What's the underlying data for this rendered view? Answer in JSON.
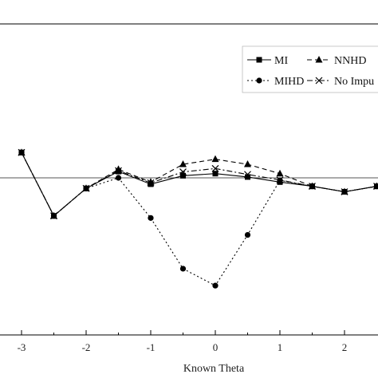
{
  "chart_data": {
    "type": "line",
    "title": "",
    "xlabel": "Known Theta",
    "ylabel": "",
    "xlim": [
      -3.3,
      2.5
    ],
    "ylim": [
      -0.42,
      0.3
    ],
    "x_ticks": [
      -3,
      -2,
      -1,
      0,
      1,
      2
    ],
    "x_tick_labels": [
      "-3",
      "-2",
      "-1",
      "0",
      "1",
      "2"
    ],
    "reference_line": 0,
    "grid": false,
    "legend_position": "top-right",
    "x": [
      -3,
      -2.5,
      -2,
      -1.5,
      -1,
      -0.5,
      0,
      0.5,
      1,
      1.5,
      2,
      2.5
    ],
    "series": [
      {
        "name": "MI",
        "marker": "square",
        "dash": "solid",
        "values": [
          0.06,
          -0.09,
          -0.025,
          0.015,
          -0.015,
          0.005,
          0.01,
          0.002,
          -0.01,
          -0.02,
          -0.033,
          -0.02
        ]
      },
      {
        "name": "NNHD",
        "marker": "triangle",
        "dash": "dashed",
        "values": [
          0.06,
          -0.09,
          -0.025,
          0.02,
          -0.01,
          0.032,
          0.044,
          0.032,
          0.01,
          -0.02,
          -0.033,
          -0.02
        ]
      },
      {
        "name": "MIHD",
        "marker": "circle",
        "dash": "dotted",
        "values": [
          0.06,
          -0.09,
          -0.025,
          0.0,
          -0.095,
          -0.215,
          -0.255,
          -0.135,
          -0.006,
          -0.02,
          -0.033,
          -0.02
        ]
      },
      {
        "name": "No Imputation",
        "marker": "x",
        "dash": "dashdot",
        "values": [
          0.06,
          -0.09,
          -0.025,
          0.017,
          -0.012,
          0.014,
          0.022,
          0.008,
          -0.005,
          -0.02,
          -0.033,
          -0.02
        ]
      }
    ],
    "legend_labels": [
      "MI",
      "NNHD",
      "MIHD",
      "No Impu"
    ]
  }
}
